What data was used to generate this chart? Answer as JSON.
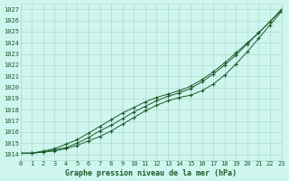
{
  "title": "Graphe pression niveau de la mer (hPa)",
  "bg_color": "#cff5ef",
  "grid_color": "#aaddcc",
  "line_color": "#1a5c2a",
  "xlim": [
    0,
    23
  ],
  "ylim": [
    1013.5,
    1027.5
  ],
  "xticks": [
    0,
    1,
    2,
    3,
    4,
    5,
    6,
    7,
    8,
    9,
    10,
    11,
    12,
    13,
    14,
    15,
    16,
    17,
    18,
    19,
    20,
    21,
    22,
    23
  ],
  "yticks": [
    1014,
    1015,
    1016,
    1017,
    1018,
    1019,
    1020,
    1021,
    1022,
    1023,
    1024,
    1025,
    1026,
    1027
  ],
  "line1": [
    1014.1,
    1014.1,
    1014.2,
    1014.3,
    1014.5,
    1014.8,
    1015.2,
    1015.6,
    1016.1,
    1016.7,
    1017.3,
    1017.9,
    1018.4,
    1018.8,
    1019.1,
    1019.3,
    1019.7,
    1020.3,
    1021.1,
    1022.1,
    1023.2,
    1024.4,
    1025.6,
    1026.8
  ],
  "line2": [
    1014.1,
    1014.1,
    1014.2,
    1014.4,
    1014.6,
    1015.0,
    1015.5,
    1016.1,
    1016.6,
    1017.2,
    1017.8,
    1018.3,
    1018.8,
    1019.2,
    1019.5,
    1019.9,
    1020.5,
    1021.2,
    1022.0,
    1022.9,
    1023.9,
    1024.9,
    1025.9,
    1027.0
  ],
  "line3": [
    1014.1,
    1014.1,
    1014.3,
    1014.5,
    1014.9,
    1015.3,
    1015.9,
    1016.5,
    1017.1,
    1017.7,
    1018.2,
    1018.7,
    1019.1,
    1019.4,
    1019.7,
    1020.1,
    1020.7,
    1021.4,
    1022.2,
    1023.1,
    1024.0,
    1024.9,
    1025.9,
    1026.9
  ]
}
